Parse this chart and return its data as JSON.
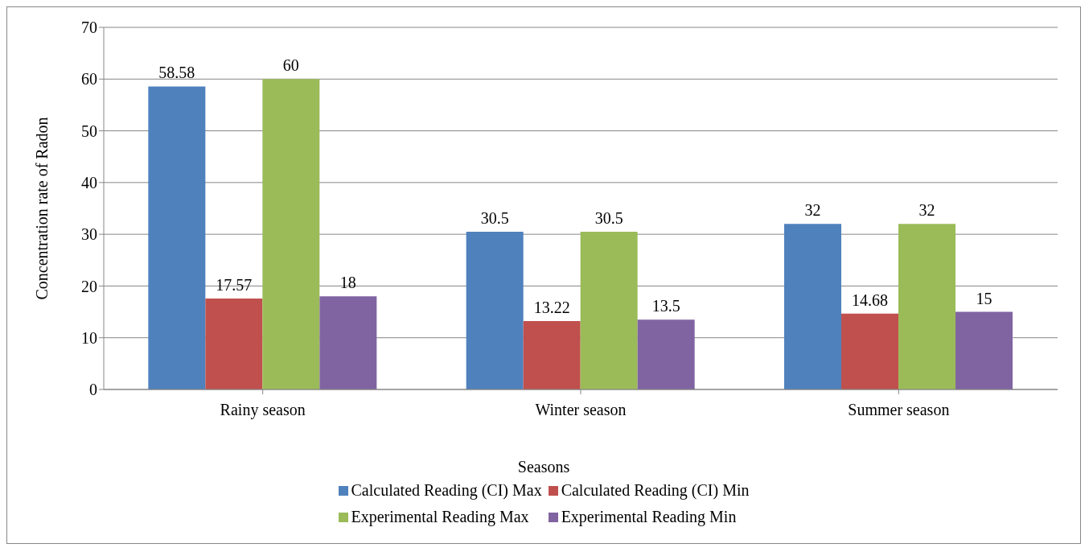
{
  "chart_data": {
    "type": "bar",
    "xlabel": "Seasons",
    "ylabel": "Concentration rate of Radon",
    "categories": [
      "Rainy season",
      "Winter season",
      "Summer season"
    ],
    "series": [
      {
        "name": "Calculated Reading (CI) Max",
        "color": "#4f81bd",
        "values": [
          58.58,
          30.5,
          32
        ]
      },
      {
        "name": "Calculated Reading (CI) Min",
        "color": "#c0504d",
        "values": [
          17.57,
          13.22,
          14.68
        ]
      },
      {
        "name": "Experimental Reading Max",
        "color": "#9bbb59",
        "values": [
          60,
          30.5,
          32
        ]
      },
      {
        "name": "Experimental Reading Min",
        "color": "#8064a2",
        "values": [
          18,
          13.5,
          15
        ]
      }
    ],
    "ylim": [
      0,
      70
    ],
    "yticks": [
      0,
      10,
      20,
      30,
      40,
      50,
      60,
      70
    ],
    "grid": "y",
    "legend": "bottom",
    "data_labels": true
  }
}
